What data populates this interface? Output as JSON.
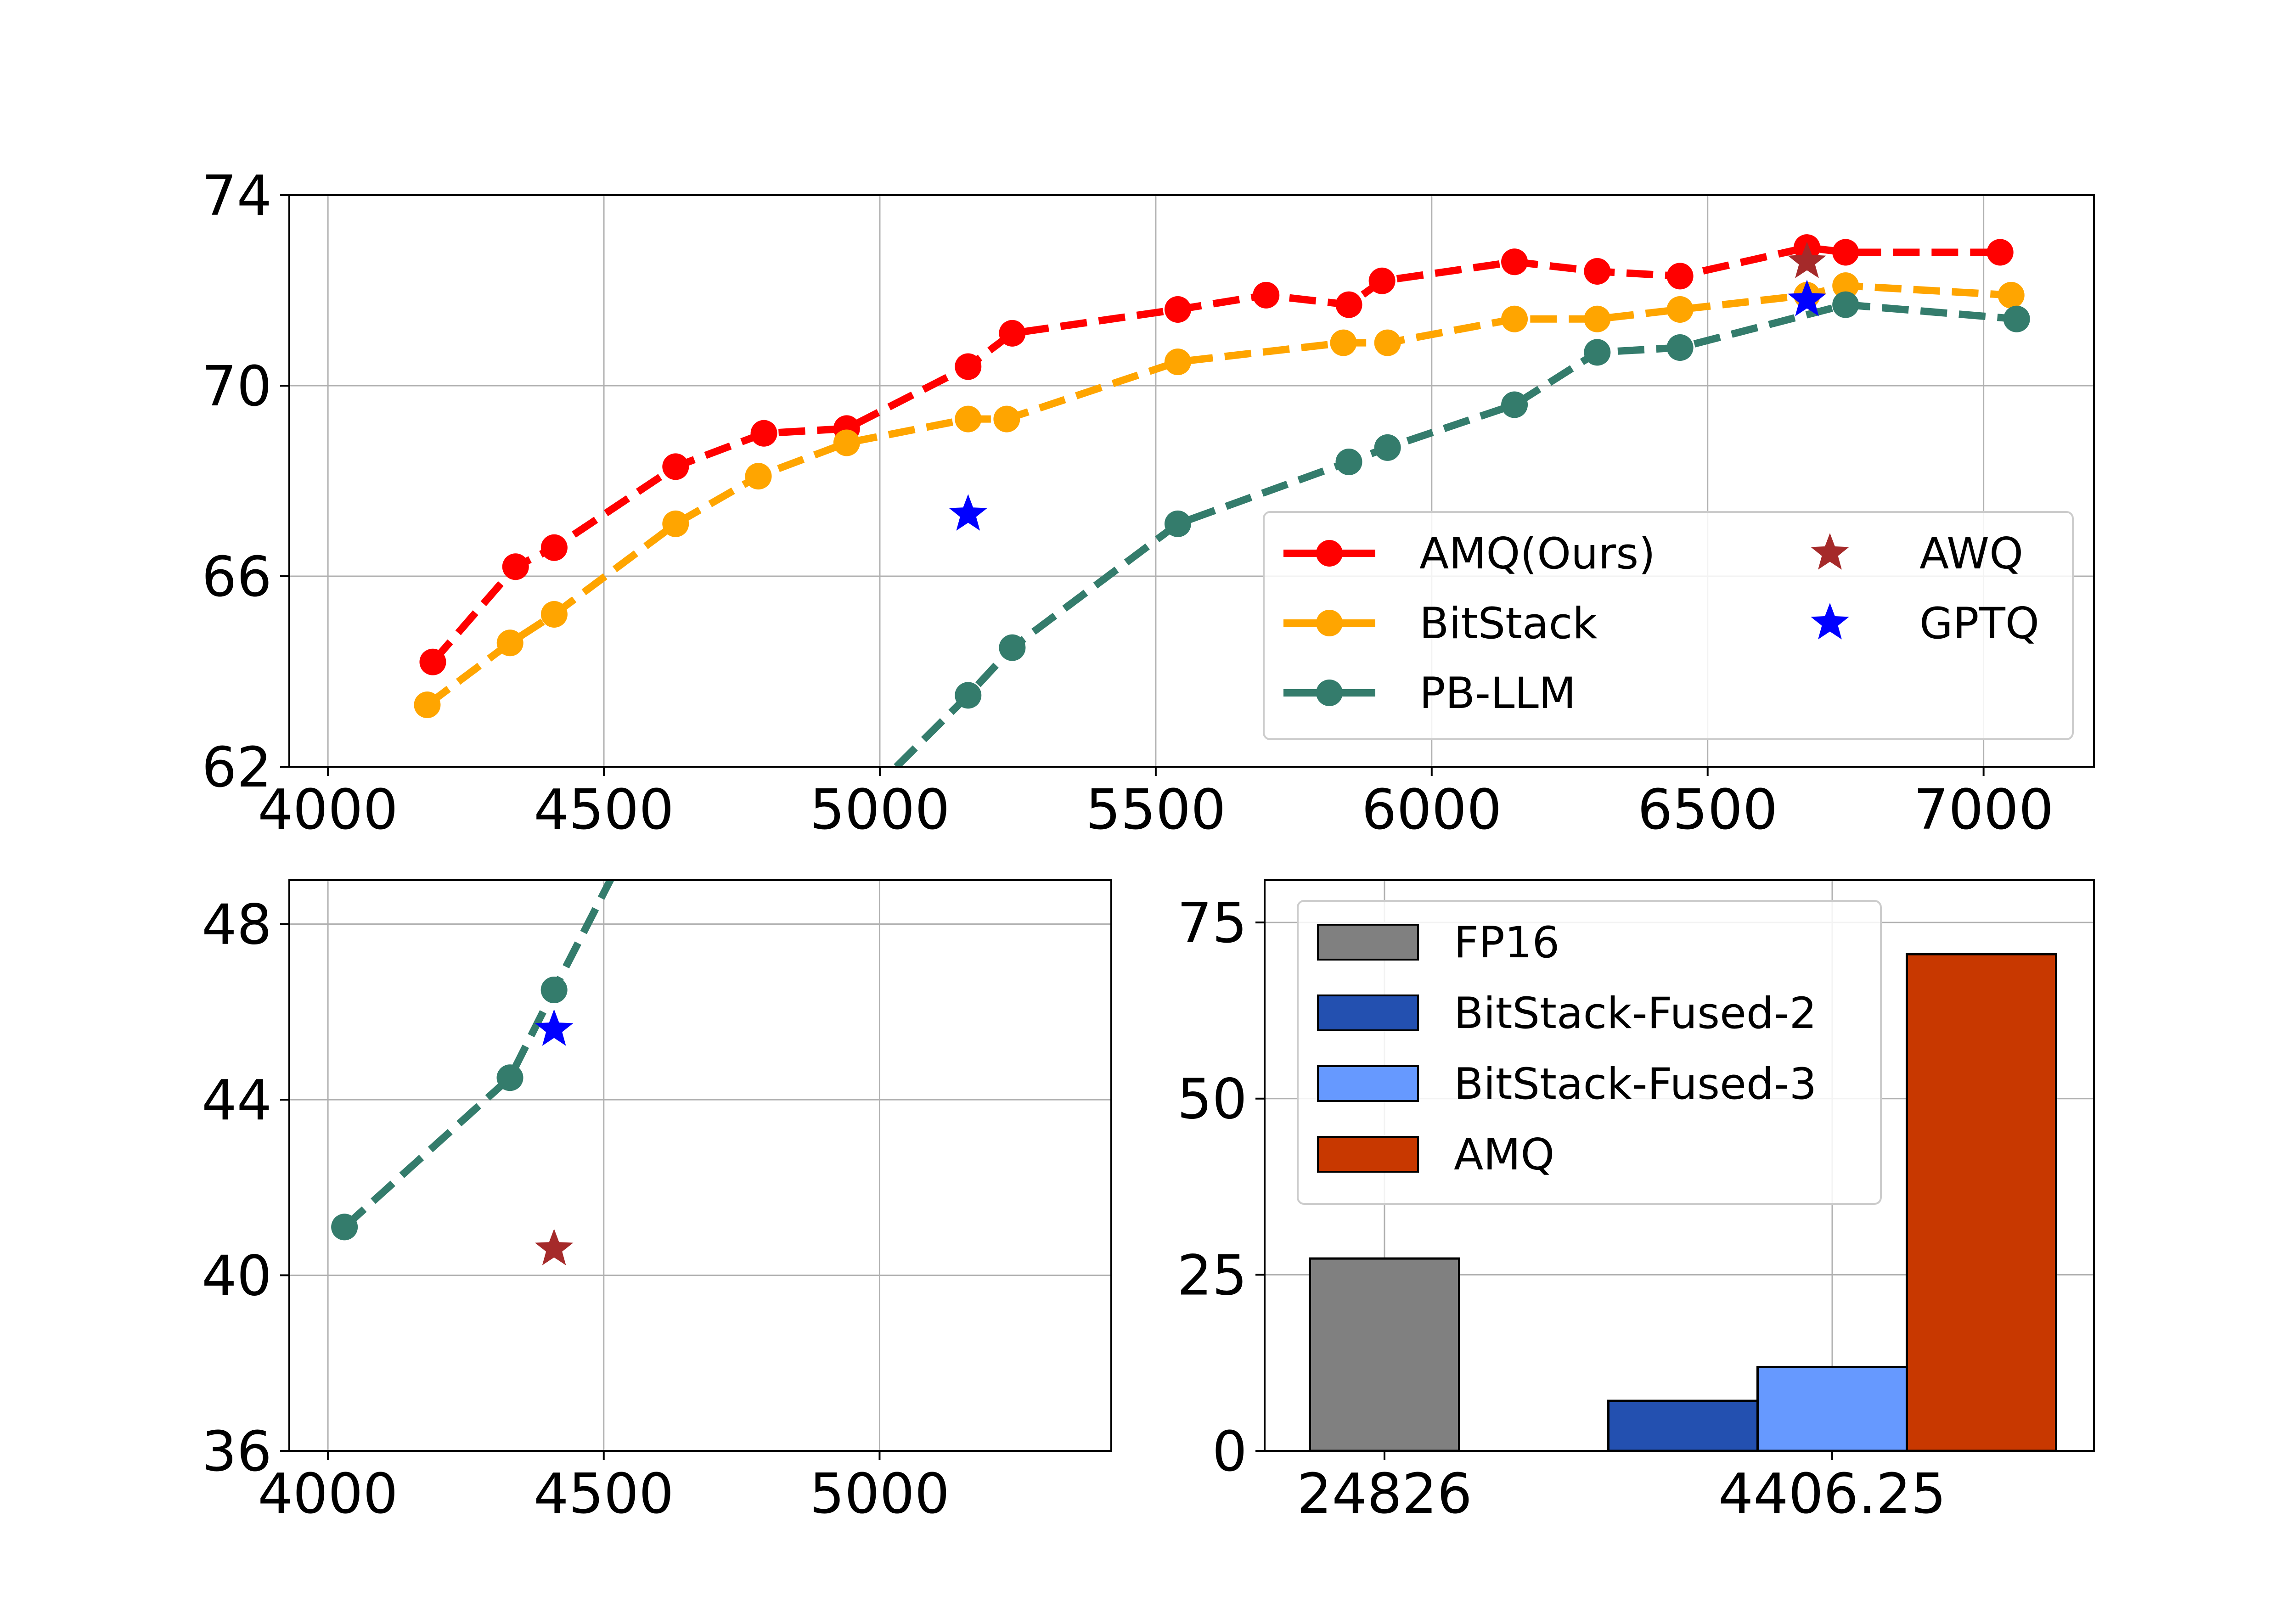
{
  "chart_data": [
    {
      "id": "top",
      "type": "line",
      "xlim": [
        3930,
        7200
      ],
      "ylim": [
        62,
        74
      ],
      "xticks": [
        4000,
        4500,
        5000,
        5500,
        6000,
        6500,
        7000
      ],
      "yticks": [
        62,
        66,
        70,
        74
      ],
      "grid": true,
      "legend_placement": "lower-right",
      "series": [
        {
          "name": "AMQ(Ours)",
          "color": "#ff0000",
          "x": [
            4190,
            4340,
            4410,
            4630,
            4790,
            4940,
            5160,
            5240,
            5540,
            5700,
            5850,
            5910,
            6150,
            6300,
            6450,
            6680,
            6750,
            7030
          ],
          "y": [
            64.2,
            66.2,
            66.6,
            68.3,
            69.0,
            69.1,
            70.4,
            71.1,
            71.6,
            71.9,
            71.7,
            72.2,
            72.6,
            72.4,
            72.3,
            72.9,
            72.8,
            72.8
          ]
        },
        {
          "name": "BitStack",
          "color": "#ffa500",
          "x": [
            4180,
            4330,
            4410,
            4630,
            4780,
            4940,
            5160,
            5230,
            5540,
            5840,
            5920,
            6150,
            6300,
            6450,
            6680,
            6750,
            7050
          ],
          "y": [
            63.3,
            64.6,
            65.2,
            67.1,
            68.1,
            68.8,
            69.3,
            69.3,
            70.5,
            70.9,
            70.9,
            71.4,
            71.4,
            71.6,
            71.9,
            72.1,
            71.9
          ],
          "marker_from": 0
        },
        {
          "name": "PB-LLM",
          "color": "#347c6c",
          "x": [
            5030,
            5160,
            5240,
            5540,
            5850,
            5920,
            6150,
            6300,
            6450,
            6750,
            7060
          ],
          "y": [
            62.0,
            63.5,
            64.5,
            67.1,
            68.4,
            68.7,
            69.6,
            70.7,
            70.8,
            71.7,
            71.4
          ],
          "marker_from": 1
        }
      ],
      "markers": [
        {
          "name": "AWQ",
          "color": "#a52a2a",
          "x": 6680,
          "y": 72.6
        },
        {
          "name": "GPTQ",
          "color": "#0000ff",
          "x": 6680,
          "y": 71.8
        },
        {
          "name": "GPTQ",
          "color": "#0000ff",
          "x": 5160,
          "y": 67.3
        }
      ],
      "legend": [
        {
          "label": "AMQ(Ours)",
          "kind": "line",
          "color": "#ff0000"
        },
        {
          "label": "BitStack",
          "kind": "line",
          "color": "#ffa500"
        },
        {
          "label": "PB-LLM",
          "kind": "line",
          "color": "#347c6c"
        },
        {
          "label": "AWQ",
          "kind": "star",
          "color": "#a52a2a"
        },
        {
          "label": "GPTQ",
          "kind": "star",
          "color": "#0000ff"
        }
      ]
    },
    {
      "id": "bottom-left",
      "type": "line",
      "xlim": [
        3930,
        5420
      ],
      "ylim": [
        36,
        49
      ],
      "xticks": [
        4000,
        4500,
        5000
      ],
      "yticks": [
        36,
        40,
        44,
        48
      ],
      "grid": true,
      "series": [
        {
          "name": "PB-LLM",
          "color": "#347c6c",
          "x": [
            4030,
            4330,
            4410,
            4520
          ],
          "y": [
            41.1,
            44.5,
            46.5,
            49.2
          ],
          "marker_count": 3
        }
      ],
      "markers": [
        {
          "name": "GPTQ",
          "color": "#0000ff",
          "x": 4410,
          "y": 45.6
        },
        {
          "name": "AWQ",
          "color": "#a52a2a",
          "x": 4410,
          "y": 40.6
        }
      ]
    },
    {
      "id": "bottom-right",
      "type": "bar",
      "categories": [
        "24826",
        "4406.25"
      ],
      "ylim": [
        0,
        81
      ],
      "yticks": [
        0,
        25,
        50,
        75
      ],
      "grid": true,
      "legend_placement": "upper-left",
      "series": [
        {
          "name": "FP16",
          "color": "#808080",
          "values": [
            27.3,
            null
          ]
        },
        {
          "name": "BitStack-Fused-2",
          "color": "#2350b0",
          "values": [
            null,
            7.1
          ]
        },
        {
          "name": "BitStack-Fused-3",
          "color": "#6699ff",
          "values": [
            null,
            11.9
          ]
        },
        {
          "name": "AMQ",
          "color": "#c83800",
          "values": [
            null,
            70.5
          ]
        }
      ]
    }
  ]
}
